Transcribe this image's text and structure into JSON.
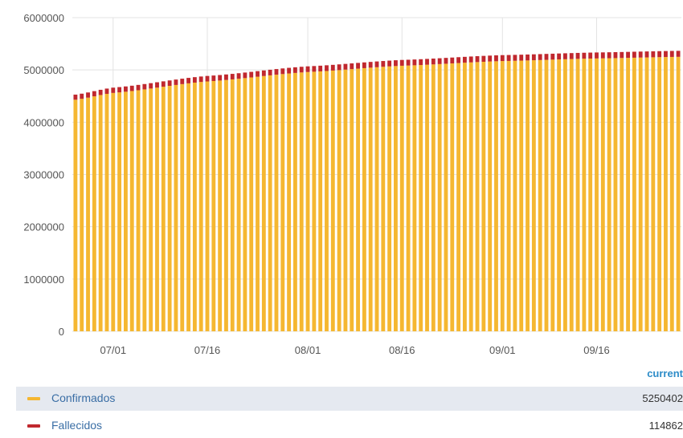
{
  "chart_data": {
    "type": "bar",
    "stacked": true,
    "yticks": [
      "0",
      "1000000",
      "2000000",
      "3000000",
      "4000000",
      "5000000",
      "6000000"
    ],
    "ylim": [
      0,
      6000000
    ],
    "xticks": [
      "07/01",
      "07/16",
      "08/01",
      "08/16",
      "09/01",
      "09/16"
    ],
    "x_start": "06/25",
    "x_end": "09/29",
    "series": [
      {
        "name": "Confirmados",
        "color": "#f5b731",
        "keypoints": [
          [
            "06/25",
            4430000
          ],
          [
            "07/01",
            4560000
          ],
          [
            "07/16",
            4780000
          ],
          [
            "08/01",
            4960000
          ],
          [
            "08/16",
            5080000
          ],
          [
            "09/01",
            5170000
          ],
          [
            "09/16",
            5220000
          ],
          [
            "09/29",
            5250402
          ]
        ]
      },
      {
        "name": "Fallecidos",
        "color": "#c0282e",
        "keypoints": [
          [
            "06/25",
            98000
          ],
          [
            "07/01",
            101000
          ],
          [
            "07/16",
            105000
          ],
          [
            "08/01",
            108500
          ],
          [
            "08/16",
            111000
          ],
          [
            "09/01",
            113000
          ],
          [
            "09/16",
            114000
          ],
          [
            "09/29",
            114862
          ]
        ]
      }
    ]
  },
  "legend": {
    "header": "current",
    "items": [
      {
        "label": "Confirmados",
        "value": "5250402",
        "color": "#f5b731"
      },
      {
        "label": "Fallecidos",
        "value": "114862",
        "color": "#c0282e"
      }
    ]
  }
}
